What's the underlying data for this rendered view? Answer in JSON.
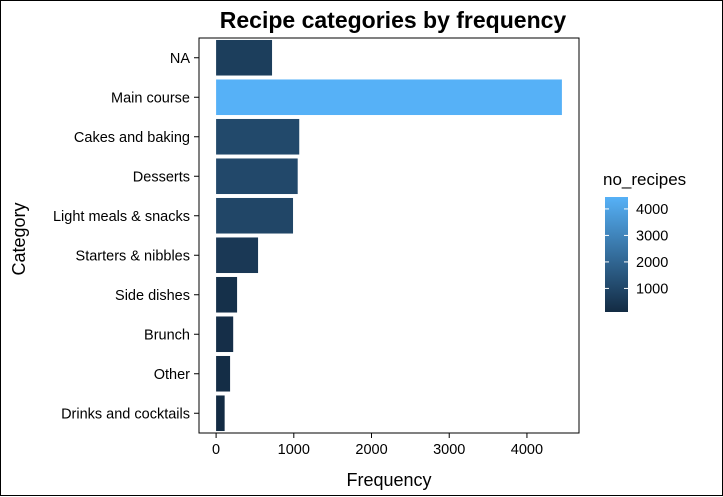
{
  "chart_data": {
    "type": "bar",
    "orientation": "horizontal",
    "title": "Recipe categories by frequency",
    "xlabel": "Frequency",
    "ylabel": "Category",
    "categories": [
      "NA",
      "Main course",
      "Cakes and baking",
      "Desserts",
      "Light meals & snacks",
      "Starters & nibbles",
      "Side dishes",
      "Brunch",
      "Other",
      "Drinks and cocktails"
    ],
    "values": [
      720,
      4450,
      1070,
      1050,
      990,
      540,
      270,
      220,
      180,
      110
    ],
    "xlim": [
      -220,
      4670
    ],
    "x_ticks": [
      0,
      1000,
      2000,
      3000,
      4000
    ],
    "x_tick_labels": [
      "0",
      "1000",
      "2000",
      "3000",
      "4000"
    ],
    "grid": false,
    "legend": {
      "title": "no_recipes",
      "position": "right",
      "type": "colorbar",
      "range": [
        110,
        4450
      ],
      "ticks": [
        1000,
        2000,
        3000,
        4000
      ],
      "tick_labels": [
        "1000",
        "2000",
        "3000",
        "4000"
      ],
      "low_color": "#132B43",
      "high_color": "#56B1F7"
    }
  }
}
